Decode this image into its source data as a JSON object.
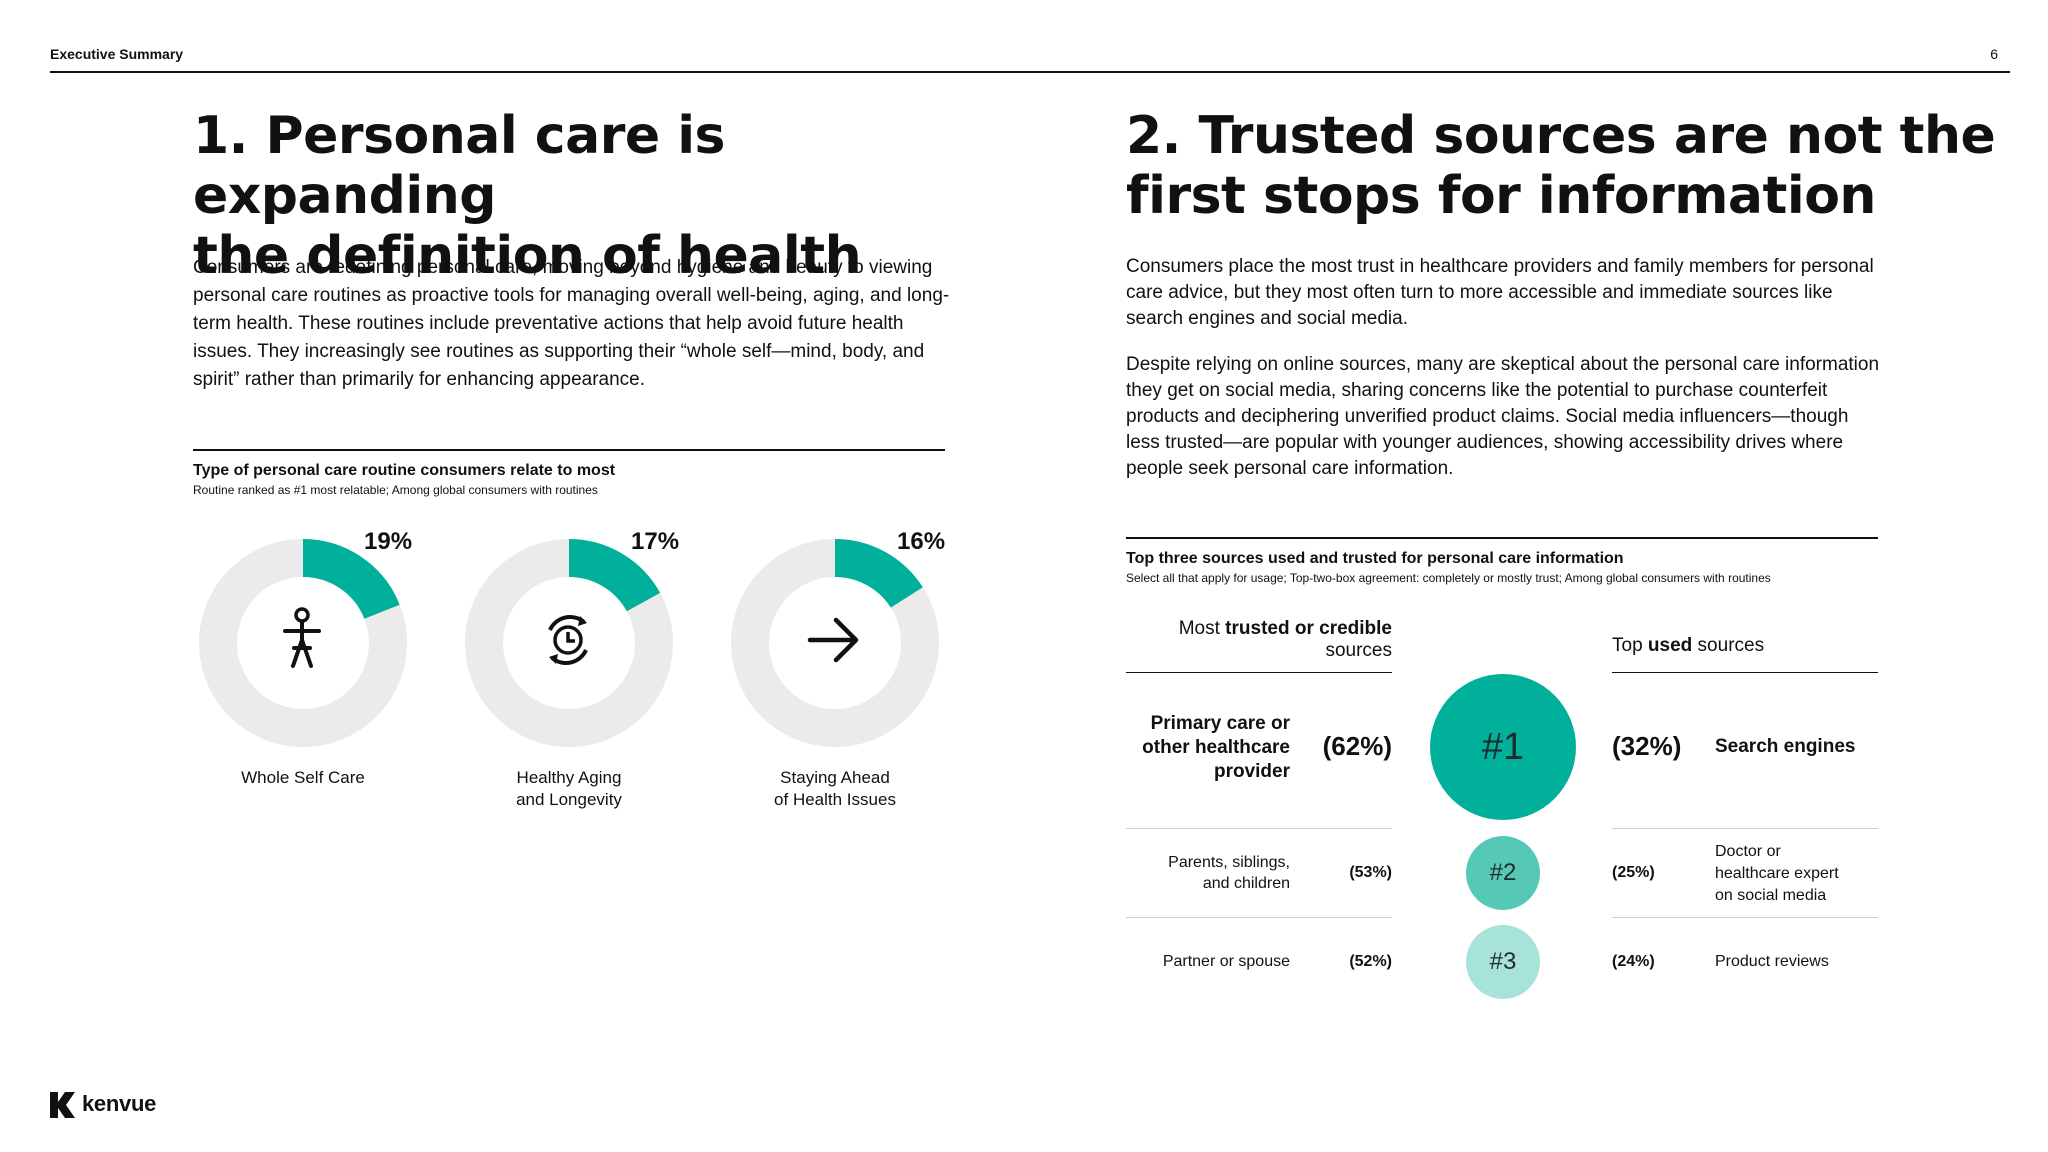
{
  "header": {
    "section": "Executive Summary",
    "page_number": "6"
  },
  "left": {
    "title_line1": "1. Personal care is expanding",
    "title_line2": "the definition of health",
    "body": "Consumers are redefining personal care, moving beyond hygiene and beauty to viewing personal care routines as proactive tools for managing overall well-being, aging, and long-term health. These routines include preventative actions that help avoid future health issues. They increasingly see routines as supporting their “whole self—mind, body, and spirit” rather than primarily for enhancing appearance.",
    "chart_title": "Type of personal care routine consumers relate to most",
    "chart_subtitle": "Routine ranked as #1 most relatable; Among global consumers with routines"
  },
  "right": {
    "title_line1": "2. Trusted sources are not the",
    "title_line2": "first stops for information",
    "body1": "Consumers place the most trust in healthcare providers and family members for personal care advice, but they most often turn to more accessible and immediate sources like search engines and social media.",
    "body2": "Despite relying on online sources, many are skeptical about the personal care information they get on social media, sharing concerns like the potential to purchase counterfeit products and deciphering unverified product claims. Social media influencers—though less trusted—are popular with younger audiences, showing accessibility drives where people seek personal care information.",
    "table_title": "Top three sources used and trusted for personal care information",
    "table_subtitle": "Select all that apply for usage; Top-two-box agreement: completely or mostly trust; Among global consumers with routines",
    "trusted_header_pre": "Most ",
    "trusted_header_bold": "trusted or credible",
    "trusted_header_post": " sources",
    "used_header_pre": "Top ",
    "used_header_bold": "used",
    "used_header_post": " sources"
  },
  "chart_data": [
    {
      "type": "pie",
      "title": "Type of personal care routine consumers relate to most",
      "subtitle": "Routine ranked as #1 most relatable; Among global consumers with routines",
      "series": [
        {
          "name": "Whole Self Care",
          "value": 19,
          "label": "19%",
          "icon": "person-icon"
        },
        {
          "name": "Healthy Aging and Longevity",
          "label_line1": "Healthy Aging",
          "label_line2": "and Longevity",
          "value": 17,
          "pct": "17%",
          "icon": "clock-cycle-icon"
        },
        {
          "name": "Staying Ahead of Health Issues",
          "label_line1": "Staying Ahead",
          "label_line2": "of Health Issues",
          "value": 16,
          "pct": "16%",
          "icon": "arrow-right-icon"
        }
      ],
      "colors": {
        "fill": "#00b09b",
        "track": "#ebebeb"
      }
    },
    {
      "type": "table",
      "title": "Top three sources used and trusted for personal care information",
      "rows": [
        {
          "rank": "#1",
          "trusted": "Primary care or other healthcare provider",
          "trusted_pct": "(62%)",
          "used": "Search engines",
          "used_pct": "(32%)",
          "color": "#00b09b"
        },
        {
          "rank": "#2",
          "trusted": "Parents, siblings, and children",
          "trusted_pct": "(53%)",
          "used": "Doctor or healthcare expert on social media",
          "used_pct": "(25%)",
          "color": "#55c9b6"
        },
        {
          "rank": "#3",
          "trusted": "Partner or spouse",
          "trusted_pct": "(52%)",
          "used": "Product reviews",
          "used_pct": "(24%)",
          "color": "#a7e3d9"
        }
      ]
    }
  ],
  "table_lines": {
    "r1_trusted_l1": "Primary care or",
    "r1_trusted_l2": "other healthcare",
    "r1_trusted_l3": "provider",
    "r2_trusted_l1": "Parents, siblings,",
    "r2_trusted_l2": "and children",
    "r2_used_l1": "Doctor or",
    "r2_used_l2": "healthcare expert",
    "r2_used_l3": "on social media"
  },
  "footer": {
    "logo_text": "kenvue"
  }
}
